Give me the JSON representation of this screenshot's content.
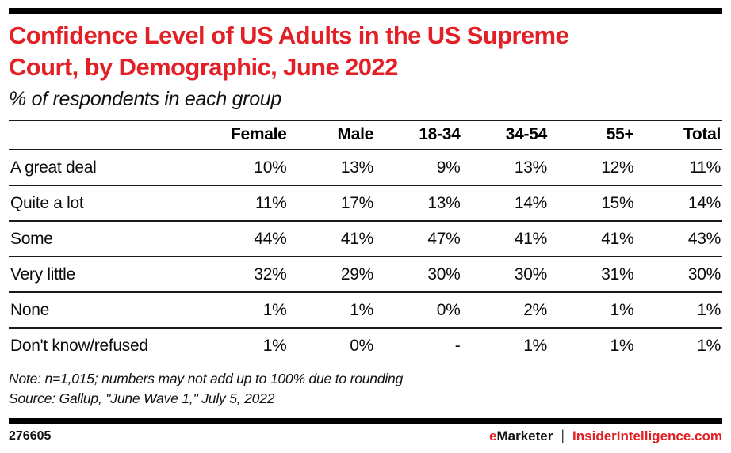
{
  "brand": {
    "accent_red": "#e22026",
    "line_black": "#1a1a1a"
  },
  "header": {
    "title": "Confidence Level of US Adults in the US Supreme\nCourt, by Demographic, June 2022",
    "subtitle": "% of respondents in each group"
  },
  "table": {
    "columns": [
      "Female",
      "Male",
      "18-34",
      "34-54",
      "55+",
      "Total"
    ],
    "rows": [
      {
        "label": "A great deal",
        "values": [
          "10%",
          "13%",
          "9%",
          "13%",
          "12%",
          "11%"
        ]
      },
      {
        "label": "Quite a lot",
        "values": [
          "11%",
          "17%",
          "13%",
          "14%",
          "15%",
          "14%"
        ]
      },
      {
        "label": "Some",
        "values": [
          "44%",
          "41%",
          "47%",
          "41%",
          "41%",
          "43%"
        ]
      },
      {
        "label": "Very little",
        "values": [
          "32%",
          "29%",
          "30%",
          "30%",
          "31%",
          "30%"
        ]
      },
      {
        "label": "None",
        "values": [
          "1%",
          "1%",
          "0%",
          "2%",
          "1%",
          "1%"
        ]
      },
      {
        "label": "Don't know/refused",
        "values": [
          "1%",
          "0%",
          "-",
          "1%",
          "1%",
          "1%"
        ]
      }
    ]
  },
  "notes": {
    "note": "Note: n=1,015; numbers may not add up to 100% due to rounding",
    "source": "Source: Gallup, \"June Wave 1,\" July 5, 2022"
  },
  "footer": {
    "chart_id": "276605",
    "brand_e": "e",
    "brand_rest": "Marketer",
    "separator": "|",
    "site": "InsiderIntelligence.com"
  },
  "chart_data": {
    "type": "table",
    "title": "Confidence Level of US Adults in the US Supreme Court, by Demographic, June 2022",
    "subtitle": "% of respondents in each group",
    "unit": "% of respondents",
    "categories": [
      "Female",
      "Male",
      "18-34",
      "34-54",
      "55+",
      "Total"
    ],
    "series": [
      {
        "name": "A great deal",
        "values": [
          10,
          13,
          9,
          13,
          12,
          11
        ]
      },
      {
        "name": "Quite a lot",
        "values": [
          11,
          17,
          13,
          14,
          15,
          14
        ]
      },
      {
        "name": "Some",
        "values": [
          44,
          41,
          47,
          41,
          41,
          43
        ]
      },
      {
        "name": "Very little",
        "values": [
          32,
          29,
          30,
          30,
          31,
          30
        ]
      },
      {
        "name": "None",
        "values": [
          1,
          1,
          0,
          2,
          1,
          1
        ]
      },
      {
        "name": "Don't know/refused",
        "values": [
          1,
          0,
          null,
          1,
          1,
          1
        ]
      }
    ],
    "note": "n=1,015; numbers may not add up to 100% due to rounding",
    "source": "Gallup, \"June Wave 1,\" July 5, 2022"
  }
}
